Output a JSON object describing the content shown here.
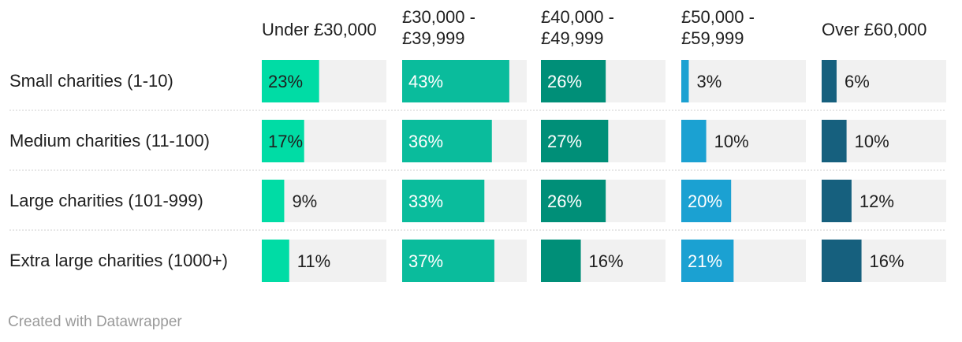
{
  "chart_data": {
    "type": "bar",
    "title": "",
    "categories": [
      "Small charities (1-10)",
      "Medium charities (11-100)",
      "Large charities (101-999)",
      "Extra large charities (1000+)"
    ],
    "series": [
      {
        "name": "Under £30,000",
        "color": "#00dca5",
        "values": [
          23,
          17,
          9,
          11
        ]
      },
      {
        "name": "£30,000 - £39,999",
        "color": "#0abc9c",
        "values": [
          43,
          36,
          33,
          37
        ]
      },
      {
        "name": "£40,000 - £49,999",
        "color": "#008f78",
        "values": [
          26,
          27,
          26,
          16
        ]
      },
      {
        "name": "£50,000 - £59,999",
        "color": "#1ba1d2",
        "values": [
          3,
          10,
          20,
          21
        ]
      },
      {
        "name": "Over £60,000",
        "color": "#16607e",
        "values": [
          6,
          10,
          12,
          16
        ]
      }
    ],
    "value_suffix": "%",
    "xlim": [
      0,
      50
    ],
    "background_color": "#f1f1f1",
    "grid": false
  },
  "header_lines": [
    [
      "Under £30,000"
    ],
    [
      "£30,000 -",
      "£39,999"
    ],
    [
      "£40,000 -",
      "£49,999"
    ],
    [
      "£50,000 -",
      "£59,999"
    ],
    [
      "Over £60,000"
    ]
  ],
  "footer": "Created with Datawrapper"
}
